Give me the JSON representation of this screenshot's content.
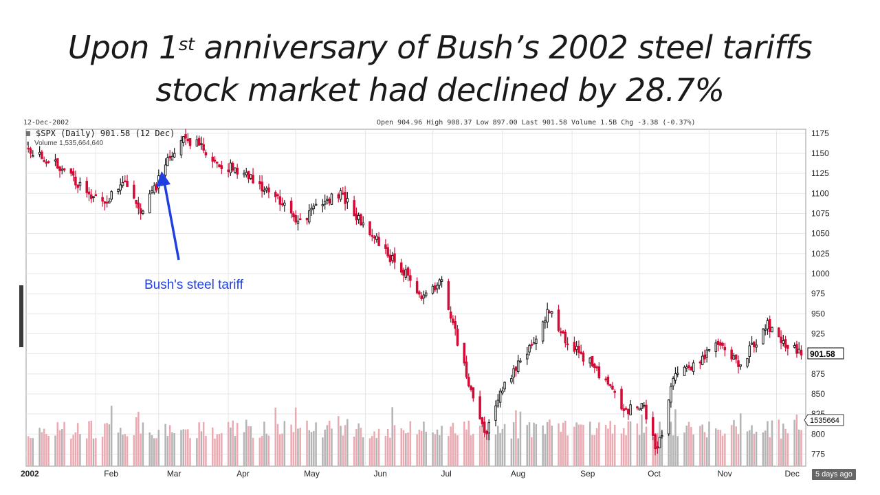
{
  "slide": {
    "title_line1_pre": "Upon 1",
    "title_line1_sup": "st",
    "title_line1_post": " anniversary of Bush’s 2002 steel tariffs",
    "title_line2": "stock market had declined by 28.7%"
  },
  "chart_header": {
    "date_top": "12-Dec-2002",
    "ohlc_strip": "Open 904.96 High 908.37 Low 897.00 Last 901.58 Volume 1.5B Chg -3.38 (-0.37%)",
    "symbol_line": "$SPX (Daily) 901.58 (12 Dec)",
    "volume_line": "Volume 1,535,664,640"
  },
  "annotation": {
    "text": "Bush's steel tariff",
    "color": "#1f3fe0"
  },
  "last_price_label": "901.58",
  "last_volume_label": "1535664",
  "footer_badge": "5 days ago",
  "colors": {
    "up": "#1a1a1a",
    "down": "#d40a35",
    "volume_up": "#b4b4b4",
    "volume_down": "#eba9b2",
    "grid": "#e6e6e6"
  },
  "chart_data": {
    "type": "candlestick",
    "title": "$SPX (Daily) 901.58 (12 Dec)",
    "ylim": [
      760,
      1180
    ],
    "y_ticks": [
      775,
      800,
      825,
      850,
      875,
      900,
      925,
      950,
      975,
      1000,
      1025,
      1050,
      1075,
      1100,
      1125,
      1150,
      1175
    ],
    "x_tick_labels": [
      "2002",
      "Feb",
      "Mar",
      "Apr",
      "May",
      "Jun",
      "Jul",
      "Aug",
      "Sep",
      "Oct",
      "Nov",
      "Dec"
    ],
    "grid": true,
    "approx_close_path": [
      {
        "date": "2002-01-02",
        "close": 1154
      },
      {
        "date": "2002-01-15",
        "close": 1138
      },
      {
        "date": "2002-01-29",
        "close": 1100
      },
      {
        "date": "2002-02-05",
        "close": 1090
      },
      {
        "date": "2002-02-13",
        "close": 1118
      },
      {
        "date": "2002-02-21",
        "close": 1080
      },
      {
        "date": "2002-02-28",
        "close": 1108
      },
      {
        "date": "2002-03-05",
        "close": 1145
      },
      {
        "date": "2002-03-11",
        "close": 1168
      },
      {
        "date": "2002-03-19",
        "close": 1165
      },
      {
        "date": "2002-03-26",
        "close": 1140
      },
      {
        "date": "2002-04-05",
        "close": 1128
      },
      {
        "date": "2002-04-12",
        "close": 1115
      },
      {
        "date": "2002-04-22",
        "close": 1095
      },
      {
        "date": "2002-05-03",
        "close": 1065
      },
      {
        "date": "2002-05-14",
        "close": 1090
      },
      {
        "date": "2002-05-21",
        "close": 1098
      },
      {
        "date": "2002-06-03",
        "close": 1050
      },
      {
        "date": "2002-06-14",
        "close": 1015
      },
      {
        "date": "2002-06-26",
        "close": 975
      },
      {
        "date": "2002-07-05",
        "close": 990
      },
      {
        "date": "2002-07-11",
        "close": 925
      },
      {
        "date": "2002-07-19",
        "close": 845
      },
      {
        "date": "2002-07-24",
        "close": 800
      },
      {
        "date": "2002-08-02",
        "close": 860
      },
      {
        "date": "2002-08-13",
        "close": 905
      },
      {
        "date": "2002-08-22",
        "close": 955
      },
      {
        "date": "2002-08-30",
        "close": 915
      },
      {
        "date": "2002-09-12",
        "close": 880
      },
      {
        "date": "2002-09-24",
        "close": 830
      },
      {
        "date": "2002-10-03",
        "close": 835
      },
      {
        "date": "2002-10-09",
        "close": 778
      },
      {
        "date": "2002-10-17",
        "close": 880
      },
      {
        "date": "2002-10-28",
        "close": 890
      },
      {
        "date": "2002-11-06",
        "close": 915
      },
      {
        "date": "2002-11-14",
        "close": 885
      },
      {
        "date": "2002-11-27",
        "close": 935
      },
      {
        "date": "2002-12-05",
        "close": 915
      },
      {
        "date": "2002-12-12",
        "close": 901.58
      }
    ],
    "series": [
      {
        "name": "$SPX (Daily)",
        "last": 901.58
      },
      {
        "name": "Volume",
        "last": 1535664640
      }
    ]
  }
}
